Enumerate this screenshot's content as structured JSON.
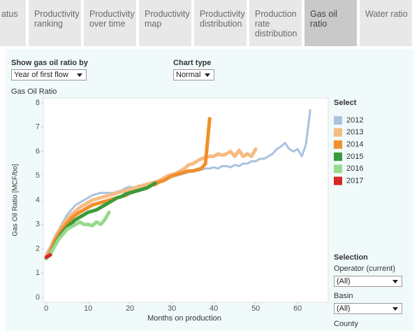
{
  "tabs": [
    "atus",
    "Productivity ranking",
    "Productivity over time",
    "Productivity map",
    "Productivity distribution",
    "Production rate distribution",
    "Gas oil ratio",
    "Water ratio"
  ],
  "selected_tab": 6,
  "controls": {
    "show_by": {
      "label": "Show gas oil ratio by",
      "value": "Year of first flow"
    },
    "chart_type": {
      "label": "Chart type",
      "value": "Normal"
    }
  },
  "selection": {
    "title": "Selection",
    "operator": {
      "label": "Operator (current)",
      "value": "(All)"
    },
    "basin": {
      "label": "Basin",
      "value": "(All)"
    },
    "county": {
      "label": "County"
    }
  },
  "chart_data": {
    "type": "line",
    "title": "Gas Oil Ratio",
    "x_label": "Months on production",
    "y_label": "Gas Oil Ratio [MCF/bo]",
    "legend_title": "Select",
    "x": [
      0,
      1,
      2,
      3,
      4,
      5,
      6,
      7,
      8,
      9,
      10,
      11,
      12,
      13,
      14,
      15,
      16,
      17,
      18,
      19,
      20,
      21,
      22,
      23,
      24,
      25,
      26,
      27,
      28,
      29,
      30,
      31,
      32,
      33,
      34,
      35,
      36,
      37,
      38,
      39,
      40,
      41,
      42,
      43,
      44,
      45,
      46,
      47,
      48,
      49,
      50,
      51,
      52,
      53,
      54,
      55,
      56,
      57,
      58,
      59,
      60,
      61,
      62,
      63
    ],
    "xlim": [
      -0.7,
      67.3
    ],
    "xticks": [
      0,
      10,
      20,
      30,
      40,
      50,
      60
    ],
    "ylim": [
      -0.2,
      8.2
    ],
    "yticks": [
      0,
      1,
      2,
      3,
      4,
      5,
      6,
      7,
      8
    ],
    "series": [
      {
        "name": "2012",
        "color": "#a9c3df",
        "values": [
          1.8,
          2.1,
          2.5,
          2.8,
          3.1,
          3.4,
          3.6,
          3.8,
          3.9,
          4.0,
          4.1,
          4.2,
          4.25,
          4.3,
          4.3,
          4.3,
          4.3,
          4.35,
          4.4,
          4.5,
          4.55,
          4.5,
          4.6,
          4.6,
          4.65,
          4.7,
          4.75,
          4.8,
          4.85,
          4.9,
          4.95,
          5.0,
          5.05,
          5.1,
          5.15,
          5.2,
          5.2,
          5.25,
          5.3,
          5.3,
          5.35,
          5.3,
          5.4,
          5.4,
          5.35,
          5.45,
          5.4,
          5.5,
          5.5,
          5.6,
          5.6,
          5.7,
          5.7,
          5.8,
          5.9,
          6.1,
          6.2,
          6.35,
          6.1,
          6.0,
          6.1,
          5.8,
          6.3,
          7.7
        ]
      },
      {
        "name": "2013",
        "color": "#f7bb82",
        "values": [
          1.7,
          2.0,
          2.4,
          2.7,
          3.0,
          3.2,
          3.4,
          3.55,
          3.7,
          3.8,
          3.9,
          4.0,
          4.05,
          4.1,
          4.15,
          4.2,
          4.25,
          4.3,
          4.35,
          4.4,
          4.45,
          4.5,
          4.55,
          4.6,
          4.65,
          4.7,
          4.75,
          4.8,
          4.9,
          5.0,
          5.05,
          5.1,
          5.2,
          5.3,
          5.45,
          5.5,
          5.6,
          5.7,
          5.75,
          5.8,
          5.8,
          5.9,
          5.85,
          5.9,
          6.0,
          5.8,
          6.05,
          5.8,
          5.9,
          5.8,
          6.1,
          null,
          null,
          null,
          null,
          null,
          null,
          null,
          null,
          null,
          null,
          null,
          null,
          null
        ]
      },
      {
        "name": "2014",
        "color": "#f28e2b",
        "values": [
          1.6,
          1.9,
          2.3,
          2.6,
          2.85,
          3.05,
          3.25,
          3.4,
          3.5,
          3.6,
          3.7,
          3.8,
          3.85,
          3.9,
          3.95,
          4.0,
          4.05,
          4.1,
          4.15,
          4.2,
          4.3,
          4.35,
          4.4,
          4.45,
          4.5,
          4.6,
          4.65,
          4.75,
          4.8,
          4.9,
          5.0,
          5.05,
          5.1,
          5.15,
          5.2,
          5.2,
          5.25,
          5.3,
          5.5,
          7.35,
          null,
          null,
          null,
          null,
          null,
          null,
          null,
          null,
          null,
          null,
          null,
          null,
          null,
          null,
          null,
          null,
          null,
          null,
          null,
          null,
          null,
          null,
          null,
          null
        ]
      },
      {
        "name": "2015",
        "color": "#3a9a3a",
        "values": [
          1.6,
          1.8,
          2.15,
          2.45,
          2.7,
          2.9,
          3.05,
          3.2,
          3.3,
          3.4,
          3.5,
          3.55,
          3.6,
          3.7,
          3.8,
          3.9,
          4.0,
          4.1,
          4.15,
          4.25,
          4.3,
          4.35,
          4.4,
          4.45,
          4.5,
          4.6,
          4.7,
          null,
          null,
          null,
          null,
          null,
          null,
          null,
          null,
          null,
          null,
          null,
          null,
          null,
          null,
          null,
          null,
          null,
          null,
          null,
          null,
          null,
          null,
          null,
          null,
          null,
          null,
          null,
          null,
          null,
          null,
          null,
          null,
          null,
          null,
          null,
          null,
          null
        ]
      },
      {
        "name": "2016",
        "color": "#98d98e",
        "values": [
          1.6,
          1.8,
          2.1,
          2.4,
          2.6,
          2.8,
          2.9,
          3.0,
          3.1,
          3.0,
          3.0,
          2.95,
          3.1,
          3.0,
          3.2,
          3.5,
          null,
          null,
          null,
          null,
          null,
          null,
          null,
          null,
          null,
          null,
          null,
          null,
          null,
          null,
          null,
          null,
          null,
          null,
          null,
          null,
          null,
          null,
          null,
          null,
          null,
          null,
          null,
          null,
          null,
          null,
          null,
          null,
          null,
          null,
          null,
          null,
          null,
          null,
          null,
          null,
          null,
          null,
          null,
          null,
          null,
          null,
          null,
          null
        ]
      },
      {
        "name": "2017",
        "color": "#d62728",
        "values": [
          1.65,
          1.75,
          null,
          null,
          null,
          null,
          null,
          null,
          null,
          null,
          null,
          null,
          null,
          null,
          null,
          null,
          null,
          null,
          null,
          null,
          null,
          null,
          null,
          null,
          null,
          null,
          null,
          null,
          null,
          null,
          null,
          null,
          null,
          null,
          null,
          null,
          null,
          null,
          null,
          null,
          null,
          null,
          null,
          null,
          null,
          null,
          null,
          null,
          null,
          null,
          null,
          null,
          null,
          null,
          null,
          null,
          null,
          null,
          null,
          null,
          null,
          null,
          null,
          null
        ]
      }
    ]
  }
}
